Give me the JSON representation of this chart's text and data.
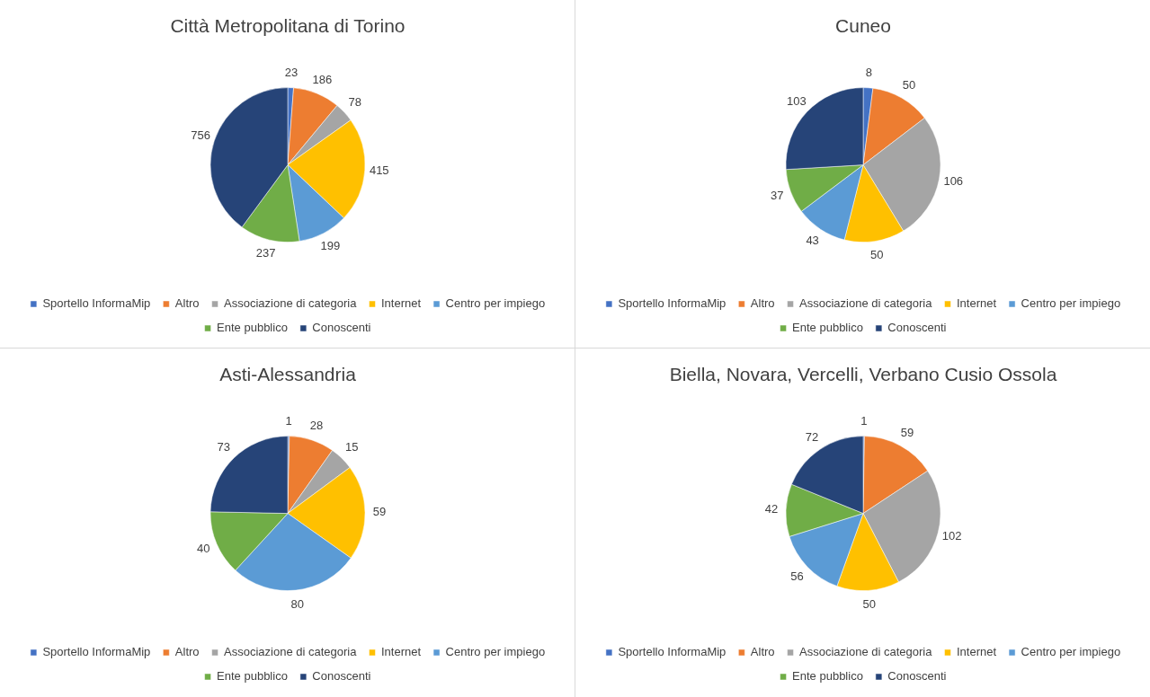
{
  "chart_data": [
    {
      "type": "pie",
      "title": "Città Metropolitana di Torino",
      "categories": [
        "Sportello InformaMip",
        "Altro",
        "Associazione di categoria",
        "Internet",
        "Centro per impiego",
        "Ente pubblico",
        "Conoscenti"
      ],
      "values": [
        23,
        186,
        78,
        415,
        199,
        237,
        756
      ],
      "colors": [
        "#4472c4",
        "#ed7d31",
        "#a5a5a5",
        "#ffc000",
        "#5b9bd5",
        "#70ad47",
        "#264478"
      ],
      "legend": "bottom",
      "data_labels": true
    },
    {
      "type": "pie",
      "title": "Cuneo",
      "categories": [
        "Sportello InformaMip",
        "Altro",
        "Associazione di categoria",
        "Internet",
        "Centro per impiego",
        "Ente pubblico",
        "Conoscenti"
      ],
      "values": [
        8,
        50,
        106,
        50,
        43,
        37,
        103
      ],
      "colors": [
        "#4472c4",
        "#ed7d31",
        "#a5a5a5",
        "#ffc000",
        "#5b9bd5",
        "#70ad47",
        "#264478"
      ],
      "legend": "bottom",
      "data_labels": true
    },
    {
      "type": "pie",
      "title": "Asti-Alessandria",
      "categories": [
        "Sportello InformaMip",
        "Altro",
        "Associazione di categoria",
        "Internet",
        "Centro per impiego",
        "Ente pubblico",
        "Conoscenti"
      ],
      "values": [
        1,
        28,
        15,
        59,
        80,
        40,
        73
      ],
      "colors": [
        "#4472c4",
        "#ed7d31",
        "#a5a5a5",
        "#ffc000",
        "#5b9bd5",
        "#70ad47",
        "#264478"
      ],
      "legend": "bottom",
      "data_labels": true
    },
    {
      "type": "pie",
      "title": "Biella, Novara, Vercelli, Verbano Cusio Ossola",
      "categories": [
        "Sportello InformaMip",
        "Altro",
        "Associazione di categoria",
        "Internet",
        "Centro per impiego",
        "Ente pubblico",
        "Conoscenti"
      ],
      "values": [
        1,
        59,
        102,
        50,
        56,
        42,
        72
      ],
      "colors": [
        "#4472c4",
        "#ed7d31",
        "#a5a5a5",
        "#ffc000",
        "#5b9bd5",
        "#70ad47",
        "#264478"
      ],
      "legend": "bottom",
      "data_labels": true
    }
  ]
}
